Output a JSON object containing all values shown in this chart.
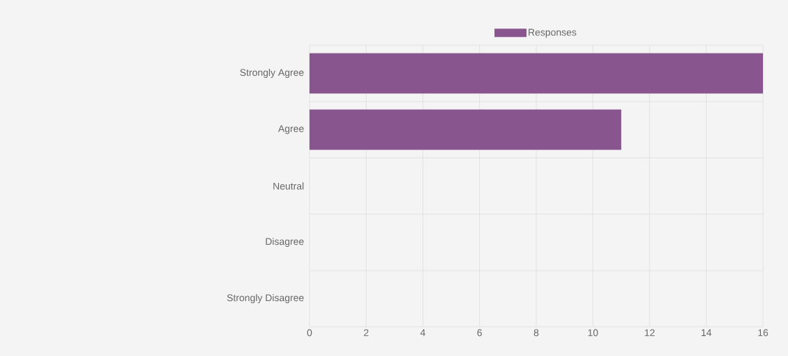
{
  "chart_data": {
    "type": "bar",
    "orientation": "horizontal",
    "categories": [
      "Strongly Agree",
      "Agree",
      "Neutral",
      "Disagree",
      "Strongly Disagree"
    ],
    "series": [
      {
        "name": "Responses",
        "color": "#88558f",
        "values": [
          16,
          11,
          0,
          0,
          0
        ]
      }
    ],
    "xlim": [
      0,
      16
    ],
    "xticks": [
      0,
      2,
      4,
      6,
      8,
      10,
      12,
      14,
      16
    ],
    "grid": true,
    "legend": "top"
  }
}
